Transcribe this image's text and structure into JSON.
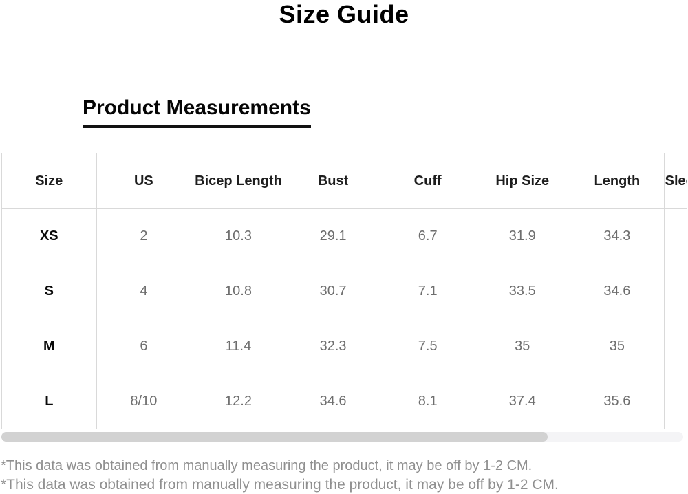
{
  "page": {
    "title": "Size Guide",
    "section_heading": "Product Measurements",
    "footnote": "*This data was obtained from manually measuring the product, it may be off by 1-2 CM.",
    "footnote_line2": "*This data was obtained from manually measuring the product, it may be off by 1-2 CM."
  },
  "colors": {
    "text_primary": "#000000",
    "table_border": "#d9d9d9",
    "value_text": "#6e6e6e",
    "footnote_text": "#8f8f8f",
    "scrollbar_track": "#f4f4f6",
    "scrollbar_thumb": "#d2d2d2"
  },
  "table": {
    "columns": [
      "Size",
      "US",
      "Bicep Length",
      "Bust",
      "Cuff",
      "Hip Size",
      "Length",
      "Sleeve Length"
    ],
    "rows": [
      {
        "size": "XS",
        "values": [
          "2",
          "10.3",
          "29.1",
          "6.7",
          "31.9",
          "34.3",
          ""
        ]
      },
      {
        "size": "S",
        "values": [
          "4",
          "10.8",
          "30.7",
          "7.1",
          "33.5",
          "34.6",
          ""
        ]
      },
      {
        "size": "M",
        "values": [
          "6",
          "11.4",
          "32.3",
          "7.5",
          "35",
          "35",
          ""
        ]
      },
      {
        "size": "L",
        "values": [
          "8/10",
          "12.2",
          "34.6",
          "8.1",
          "37.4",
          "35.6",
          ""
        ]
      }
    ]
  },
  "scrollbar": {
    "orientation": "horizontal"
  }
}
